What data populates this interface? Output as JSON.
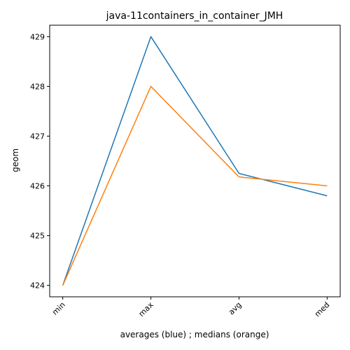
{
  "chart_data": {
    "type": "line",
    "title": "java-11containers_in_container_JMH",
    "xlabel": "averages (blue) ; medians (orange)",
    "ylabel": "geom",
    "categories": [
      "min",
      "max",
      "avg",
      "med"
    ],
    "yticks": [
      "424",
      "425",
      "426",
      "427",
      "428",
      "429"
    ],
    "ylim": [
      423.77,
      429.23
    ],
    "grid": false,
    "series": [
      {
        "color": "#1f77b4",
        "values": [
          424.0,
          429.0,
          426.25,
          425.8
        ]
      },
      {
        "color": "#ff7f0e",
        "values": [
          424.0,
          428.0,
          426.18,
          426.0
        ]
      }
    ]
  }
}
